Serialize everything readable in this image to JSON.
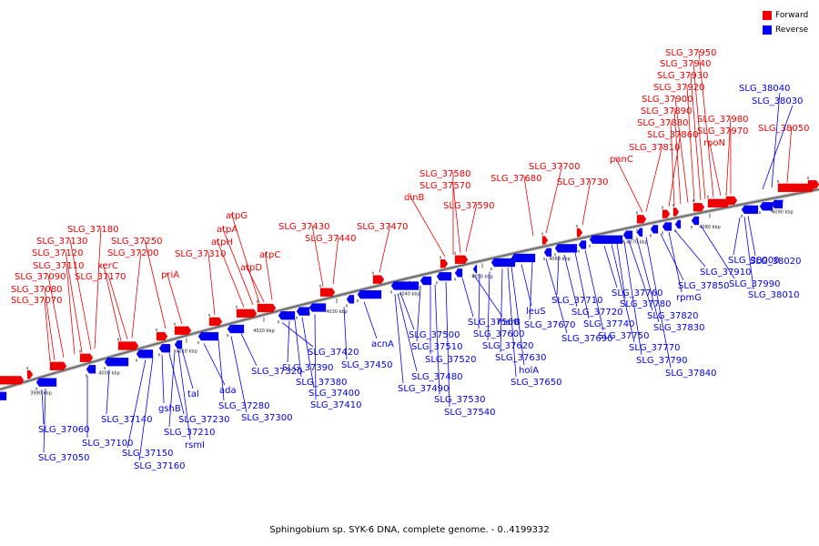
{
  "caption": "Sphingobium sp. SYK-6 DNA, complete genome. - 0..4199332",
  "legend": [
    {
      "label": "Forward",
      "color": "#ee0000"
    },
    {
      "label": "Reverse",
      "color": "#0000ee"
    }
  ],
  "colors": {
    "forward": "#ee0000",
    "reverse": "#0000ee",
    "axis": "#888888"
  },
  "ticks": [
    "3990 kbp",
    "4000 kbp",
    "4010 kbp",
    "4020 kbp",
    "4030 kbp",
    "4040 kbp",
    "4050 kbp",
    "4060 kbp",
    "4070 kbp",
    "4080 kbp",
    "4090 kbp"
  ],
  "forward_labels": [
    "SLG_37070",
    "SLG_37080",
    "SLG_37090",
    "SLG_37110",
    "SLG_37120",
    "SLG_37130",
    "SLG_37180",
    "xerC",
    "SLG_37170",
    "SLG_37200",
    "SLG_37250",
    "priA",
    "SLG_37310",
    "atpH",
    "atpA",
    "atpG",
    "atpD",
    "atpC",
    "SLG_37430",
    "SLG_37440",
    "SLG_37470",
    "dinB",
    "SLG_37580",
    "SLG_37570",
    "SLG_37590",
    "SLG_37680",
    "SLG_37700",
    "SLG_37730",
    "panC",
    "SLG_37810",
    "SLG_37860",
    "SLG_37880",
    "SLG_37890",
    "SLG_37900",
    "SLG_37920",
    "SLG_37930",
    "SLG_37940",
    "SLG_37950",
    "SLG_37980",
    "SLG_37970",
    "rpoN",
    "SLG_38050"
  ],
  "reverse_labels": [
    "SLG_37060",
    "SLG_37050",
    "SLG_37100",
    "SLG_37140",
    "SLG_37150",
    "SLG_37160",
    "gshB",
    "SLG_37230",
    "SLG_37210",
    "rsmI",
    "tal",
    "ada",
    "SLG_37280",
    "SLG_37300",
    "SLG_37320",
    "SLG_37420",
    "SLG_37390",
    "SLG_37380",
    "SLG_37400",
    "SLG_37410",
    "SLG_37450",
    "acnA",
    "SLG_37480",
    "SLG_37490",
    "SLG_37500",
    "SLG_37510",
    "SLG_37520",
    "SLG_37530",
    "SLG_37540",
    "SLG_37560",
    "msrB",
    "SLG_37600",
    "SLG_37620",
    "SLG_37630",
    "holA",
    "SLG_37650",
    "leuS",
    "SLG_37670",
    "SLG_37690",
    "SLG_37710",
    "SLG_37720",
    "SLG_37740",
    "SLG_37750",
    "SLG_37760",
    "SLG_37770",
    "SLG_37780",
    "SLG_37790",
    "SLG_37820",
    "SLG_37830",
    "SLG_37840",
    "SLG_37850",
    "rpmG",
    "SLG_37910",
    "SLG_37990",
    "SLG_38000",
    "SLG_38010",
    "SLG_38020",
    "SLG_38030",
    "SLG_38040"
  ]
}
